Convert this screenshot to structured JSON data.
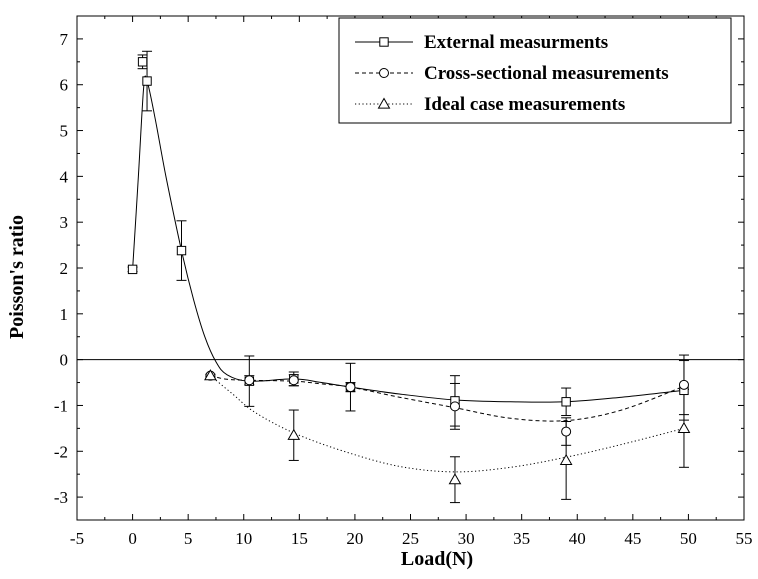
{
  "chart_data": {
    "type": "line",
    "title": "",
    "xlabel": "Load(N)",
    "ylabel": "Poisson's ratio",
    "xlim": [
      -5,
      55
    ],
    "ylim": [
      -3.5,
      7.5
    ],
    "xticks": [
      -5,
      0,
      5,
      10,
      15,
      20,
      25,
      30,
      35,
      40,
      45,
      50,
      55
    ],
    "yticks": [
      -3,
      -2,
      -1,
      0,
      1,
      2,
      3,
      4,
      5,
      6,
      7
    ],
    "grid": false,
    "reference_line_y": 0,
    "legend_position": "top-right",
    "series": [
      {
        "name": "External measurments",
        "line_style": "solid",
        "marker": "square",
        "x": [
          0,
          0.9,
          1.3,
          4.4,
          10.5,
          14.5,
          19.6,
          29.0,
          39.0,
          49.6
        ],
        "y": [
          1.97,
          6.5,
          6.08,
          2.38,
          -0.47,
          -0.42,
          -0.6,
          -0.9,
          -0.92,
          -0.67
        ],
        "err": [
          0.05,
          0.15,
          0.65,
          0.65,
          0.55,
          0.15,
          0.52,
          0.55,
          0.3,
          0.65
        ],
        "curve": [
          [
            0,
            1.97
          ],
          [
            0.5,
            3.9
          ],
          [
            1.0,
            5.95
          ],
          [
            1.3,
            6.08
          ],
          [
            2.0,
            5.3
          ],
          [
            3.0,
            4.0
          ],
          [
            4.4,
            2.38
          ],
          [
            5.5,
            1.3
          ],
          [
            6.5,
            0.5
          ],
          [
            7.5,
            -0.05
          ],
          [
            8.5,
            -0.33
          ],
          [
            10.5,
            -0.47
          ],
          [
            14.5,
            -0.42
          ],
          [
            17,
            -0.5
          ],
          [
            19.6,
            -0.6
          ],
          [
            24,
            -0.75
          ],
          [
            29,
            -0.88
          ],
          [
            34,
            -0.92
          ],
          [
            39,
            -0.92
          ],
          [
            44,
            -0.82
          ],
          [
            49.6,
            -0.67
          ]
        ]
      },
      {
        "name": "Cross-sectional measurements",
        "line_style": "dashed",
        "marker": "circle",
        "x": [
          7.0,
          10.5,
          14.5,
          19.6,
          29.0,
          39.0,
          49.6
        ],
        "y": [
          -0.35,
          -0.45,
          -0.45,
          -0.6,
          -1.02,
          -1.57,
          -0.55
        ],
        "err": [
          0.03,
          0.1,
          0.12,
          0.1,
          0.5,
          0.3,
          0.65
        ],
        "curve": [
          [
            7.0,
            -0.35
          ],
          [
            8.5,
            -0.43
          ],
          [
            10.5,
            -0.45
          ],
          [
            14.5,
            -0.47
          ],
          [
            17,
            -0.53
          ],
          [
            19.6,
            -0.6
          ],
          [
            24,
            -0.82
          ],
          [
            29,
            -1.05
          ],
          [
            34,
            -1.28
          ],
          [
            39,
            -1.33
          ],
          [
            44,
            -1.1
          ],
          [
            49.6,
            -0.58
          ]
        ]
      },
      {
        "name": "Ideal case measurements",
        "line_style": "dotted",
        "marker": "triangle",
        "x": [
          7.0,
          14.5,
          29.0,
          39.0,
          49.6
        ],
        "y": [
          -0.35,
          -1.65,
          -2.62,
          -2.2,
          -1.5
        ],
        "err": [
          0.03,
          0.55,
          0.5,
          0.85,
          0.85
        ],
        "curve": [
          [
            7.0,
            -0.35
          ],
          [
            9,
            -0.75
          ],
          [
            11,
            -1.15
          ],
          [
            14.5,
            -1.6
          ],
          [
            19,
            -2.0
          ],
          [
            24,
            -2.33
          ],
          [
            29,
            -2.45
          ],
          [
            34,
            -2.35
          ],
          [
            39,
            -2.13
          ],
          [
            44,
            -1.85
          ],
          [
            49.6,
            -1.5
          ]
        ]
      }
    ]
  }
}
